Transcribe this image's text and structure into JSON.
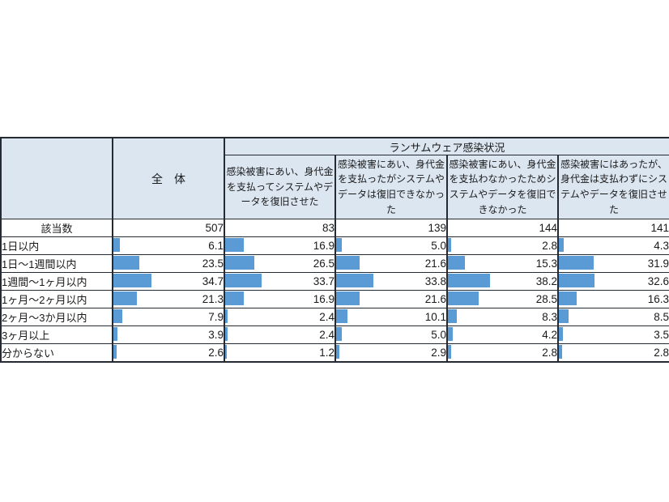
{
  "chart_data": {
    "type": "table",
    "title": "ランサムウェア感染状況",
    "corner_label": "",
    "count_label": "該当数",
    "categories": [
      "1日以内",
      "1日～1週間以内",
      "1週間～1ヶ月以内",
      "1ヶ月～2ヶ月以内",
      "2ヶ月～3か月以内",
      "3ヶ月以上",
      "分からない"
    ],
    "series": [
      {
        "name": "全　体",
        "n": 507,
        "values": [
          6.1,
          23.5,
          34.7,
          21.3,
          7.9,
          3.9,
          2.6
        ]
      },
      {
        "name": "感染被害にあい、身代金を支払ってシステムやデータを復旧させた",
        "n": 83,
        "values": [
          16.9,
          26.5,
          33.7,
          16.9,
          2.4,
          2.4,
          1.2
        ]
      },
      {
        "name": "感染被害にあい、身代金を支払ったがシステムやデータは復旧できなかった",
        "n": 139,
        "values": [
          5.0,
          21.6,
          33.8,
          21.6,
          10.1,
          5.0,
          2.9
        ]
      },
      {
        "name": "感染被害にあい、身代金を支払わなかったためシステムやデータを復旧できなかった",
        "n": 144,
        "values": [
          2.8,
          15.3,
          38.2,
          28.5,
          8.3,
          4.2,
          2.8
        ]
      },
      {
        "name": "感染被害にはあったが、身代金は支払わずにシステムやデータを復旧させた",
        "n": 141,
        "values": [
          4.3,
          31.9,
          32.6,
          16.3,
          8.5,
          3.5,
          2.8
        ]
      }
    ],
    "unit": "%",
    "bar_scale": "bar width equals value percent of cell width",
    "legend_position": "none",
    "grid": "full cell borders"
  },
  "colors": {
    "header_fill": "#DCE6F1",
    "bar": "#5B9BD5",
    "border": "#262B33"
  }
}
